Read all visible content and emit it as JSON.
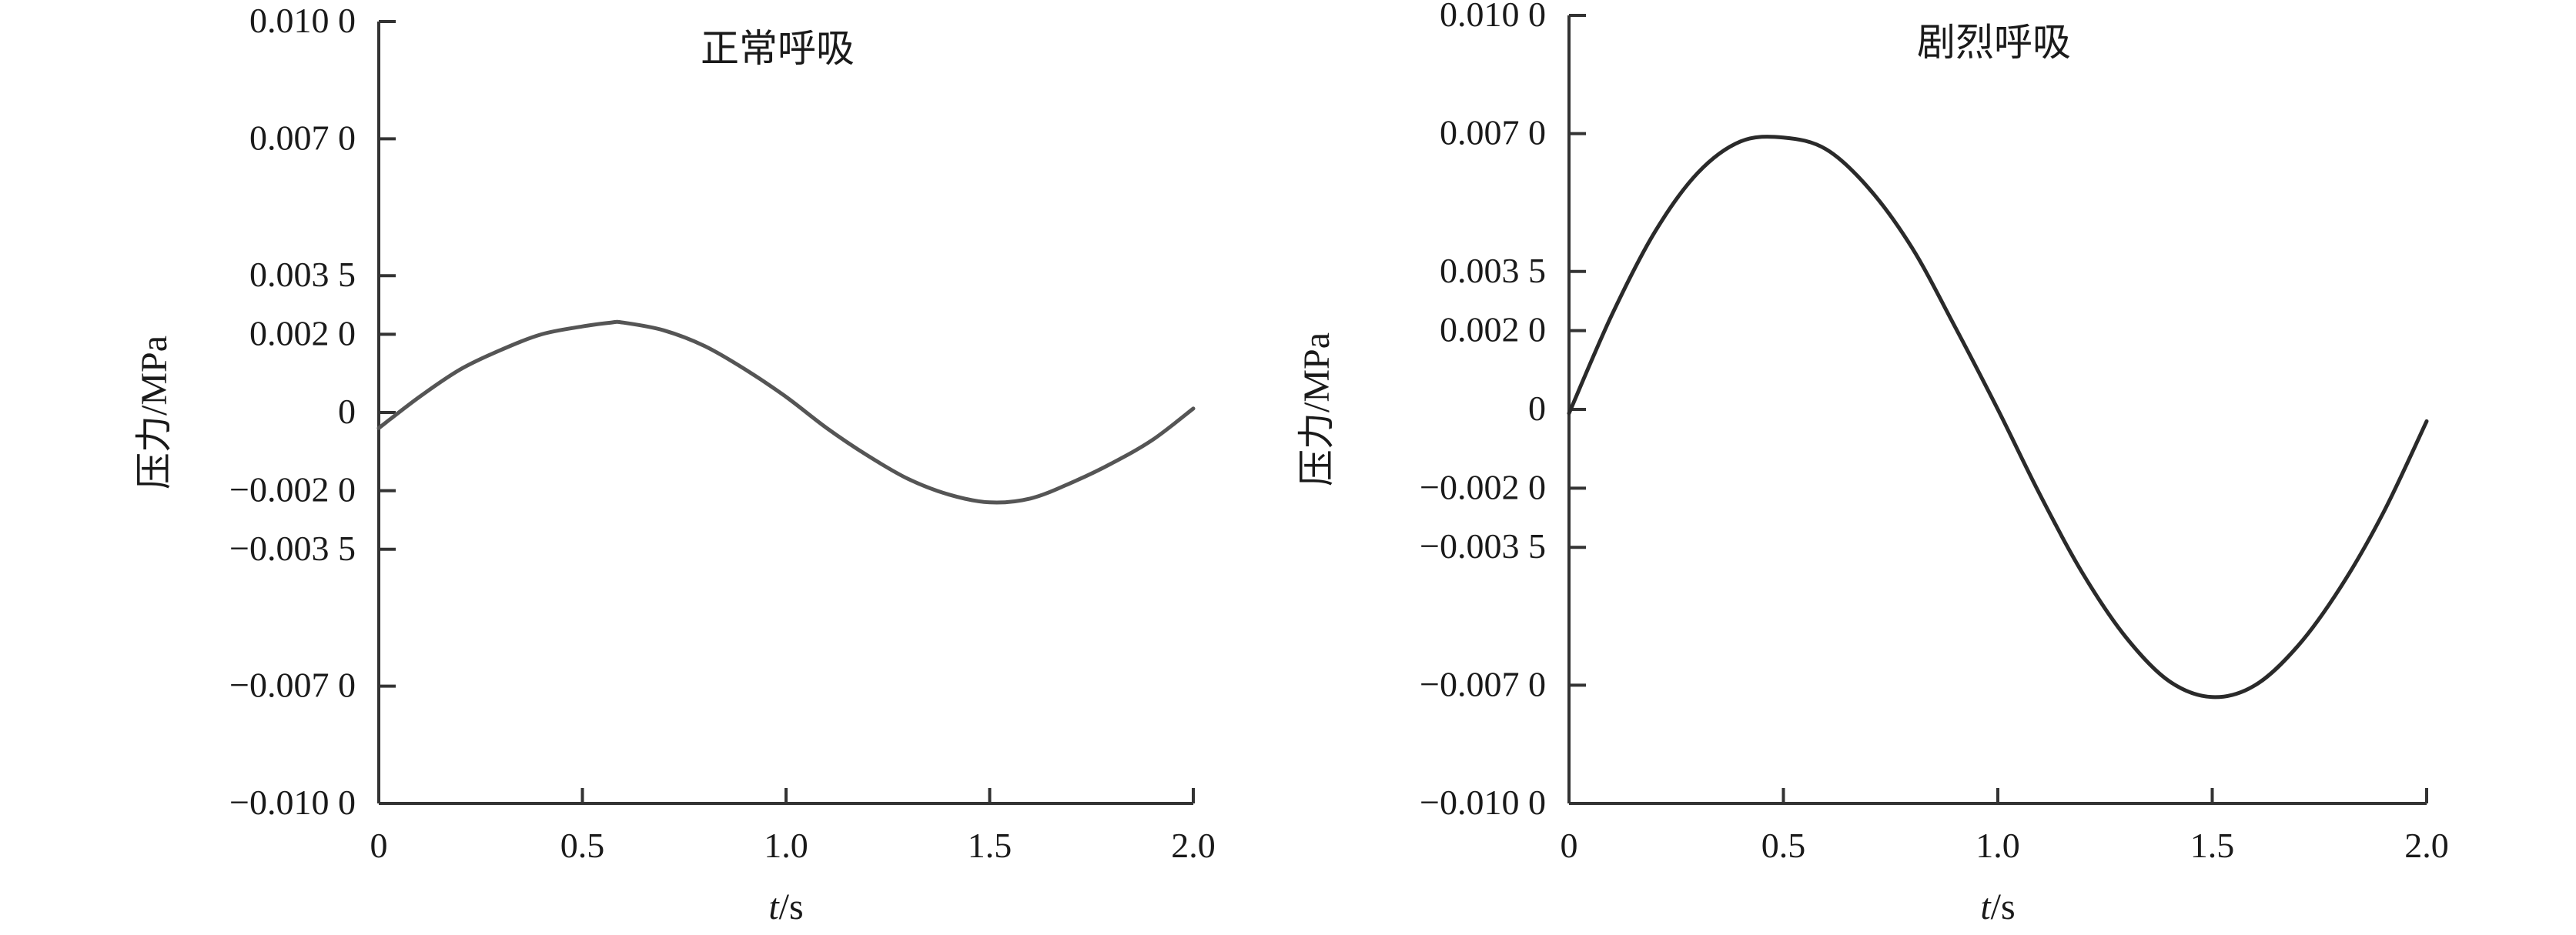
{
  "chart_data": [
    {
      "type": "line",
      "title": "正常呼吸",
      "xlabel_italic": "t",
      "xlabel_rest": "/s",
      "ylabel": "压力/MPa",
      "xlim": [
        0,
        2.0
      ],
      "ylim": [
        -0.01,
        0.01
      ],
      "x_ticks": [
        {
          "value": 0,
          "label": "0"
        },
        {
          "value": 0.5,
          "label": "0.5"
        },
        {
          "value": 1.0,
          "label": "1.0"
        },
        {
          "value": 1.5,
          "label": "1.5"
        },
        {
          "value": 2.0,
          "label": "2.0"
        }
      ],
      "y_ticks": [
        {
          "value": 0.01,
          "label": "0.010 0"
        },
        {
          "value": 0.007,
          "label": "0.007 0"
        },
        {
          "value": 0.0035,
          "label": "0.003 5"
        },
        {
          "value": 0.002,
          "label": "0.002 0"
        },
        {
          "value": 0,
          "label": "0"
        },
        {
          "value": -0.002,
          "label": "−0.002 0"
        },
        {
          "value": -0.0035,
          "label": "−0.003 5"
        },
        {
          "value": -0.007,
          "label": "−0.007 0"
        },
        {
          "value": -0.01,
          "label": "−0.010 0"
        }
      ],
      "series": [
        {
          "color": "#555555",
          "x": [
            0,
            0.1,
            0.2,
            0.3,
            0.4,
            0.5,
            0.57,
            0.6,
            0.7,
            0.8,
            0.9,
            1.0,
            1.1,
            1.2,
            1.3,
            1.4,
            1.5,
            1.6,
            1.7,
            1.8,
            1.9,
            2.0
          ],
          "y": [
            -0.0004,
            0.0004,
            0.0011,
            0.0016,
            0.002,
            0.0022,
            0.0023,
            0.0023,
            0.0021,
            0.0017,
            0.0011,
            0.0004,
            -0.0004,
            -0.0011,
            -0.0017,
            -0.0021,
            -0.0023,
            -0.0022,
            -0.0018,
            -0.0013,
            -0.0007,
            0.0001
          ]
        }
      ]
    },
    {
      "type": "line",
      "title": "剧烈呼吸",
      "xlabel_italic": "t",
      "xlabel_rest": "/s",
      "ylabel": "压力/MPa",
      "xlim": [
        0,
        2.0
      ],
      "ylim": [
        -0.01,
        0.01
      ],
      "x_ticks": [
        {
          "value": 0,
          "label": "0"
        },
        {
          "value": 0.5,
          "label": "0.5"
        },
        {
          "value": 1.0,
          "label": "1.0"
        },
        {
          "value": 1.5,
          "label": "1.5"
        },
        {
          "value": 2.0,
          "label": "2.0"
        }
      ],
      "y_ticks": [
        {
          "value": 0.01,
          "label": "0.010 0"
        },
        {
          "value": 0.007,
          "label": "0.007 0"
        },
        {
          "value": 0.0035,
          "label": "0.003 5"
        },
        {
          "value": 0.002,
          "label": "0.002 0"
        },
        {
          "value": 0,
          "label": "0"
        },
        {
          "value": -0.002,
          "label": "−0.002 0"
        },
        {
          "value": -0.0035,
          "label": "−0.003 5"
        },
        {
          "value": -0.007,
          "label": "−0.007 0"
        },
        {
          "value": -0.01,
          "label": "−0.010 0"
        }
      ],
      "series": [
        {
          "color": "#2a2a2a",
          "x": [
            0,
            0.1,
            0.2,
            0.3,
            0.4,
            0.5,
            0.6,
            0.7,
            0.8,
            0.9,
            1.0,
            1.1,
            1.2,
            1.3,
            1.4,
            1.5,
            1.6,
            1.7,
            1.8,
            1.9,
            2.0
          ],
          "y": [
            -0.0001,
            0.0024,
            0.0045,
            0.006,
            0.0068,
            0.0069,
            0.0066,
            0.0056,
            0.0041,
            0.0021,
            0.0,
            -0.0022,
            -0.0042,
            -0.0058,
            -0.0069,
            -0.0073,
            -0.007,
            -0.006,
            -0.0045,
            -0.0026,
            -0.0003
          ]
        }
      ]
    }
  ]
}
